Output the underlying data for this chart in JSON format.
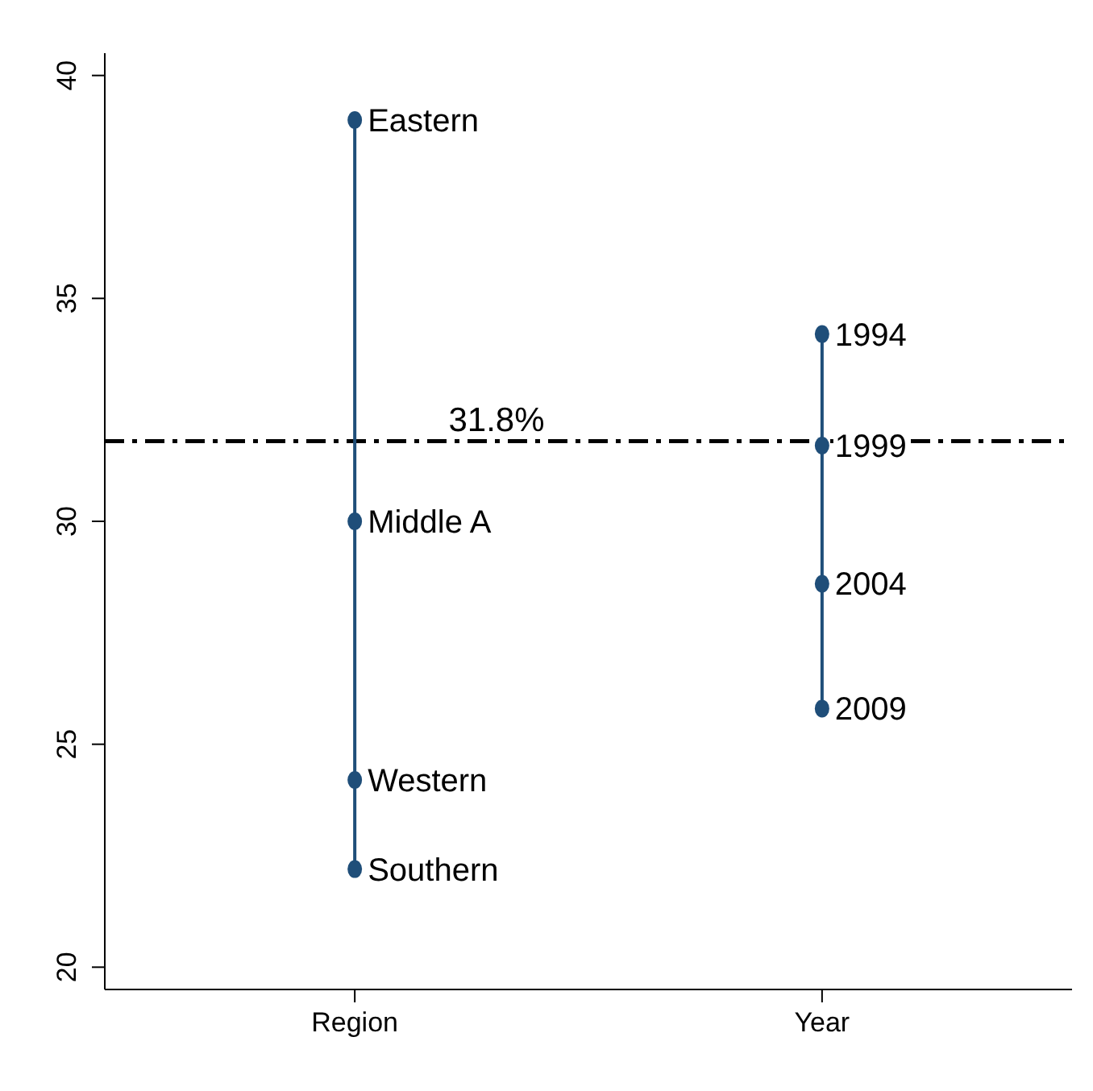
{
  "chart_data": {
    "type": "line",
    "categories": [
      "Region",
      "Year"
    ],
    "series": [
      {
        "color": "#1f4e79",
        "x": [
          "Region",
          "Region",
          "Region",
          "Region"
        ],
        "values": [
          39.0,
          30.0,
          24.2,
          22.2
        ]
      },
      {
        "color": "#1f4e79",
        "x": [
          "Year",
          "Year",
          "Year",
          "Year"
        ],
        "values": [
          34.2,
          31.7,
          28.6,
          25.8
        ]
      }
    ],
    "annotations": [
      {
        "text": "Eastern",
        "x": "Region",
        "y": 39.0
      },
      {
        "text": "Middle A",
        "x": "Region",
        "y": 30.0
      },
      {
        "text": "Western",
        "x": "Region",
        "y": 24.2
      },
      {
        "text": "Southern",
        "x": "Region",
        "y": 22.2
      },
      {
        "text": "1994",
        "x": "Year",
        "y": 34.2
      },
      {
        "text": "1999",
        "x": "Year",
        "y": 31.7
      },
      {
        "text": "2004",
        "x": "Year",
        "y": 28.6
      },
      {
        "text": "2009",
        "x": "Year",
        "y": 25.8
      }
    ],
    "ylim": [
      19.5,
      40.5
    ],
    "yticks": [
      20,
      25,
      30,
      35,
      40
    ],
    "ref_lines": [
      {
        "axis": "y",
        "value": 31.8,
        "label": "31.8%",
        "color": "#000000",
        "line_style": "dashed"
      }
    ],
    "marker": "circle"
  }
}
